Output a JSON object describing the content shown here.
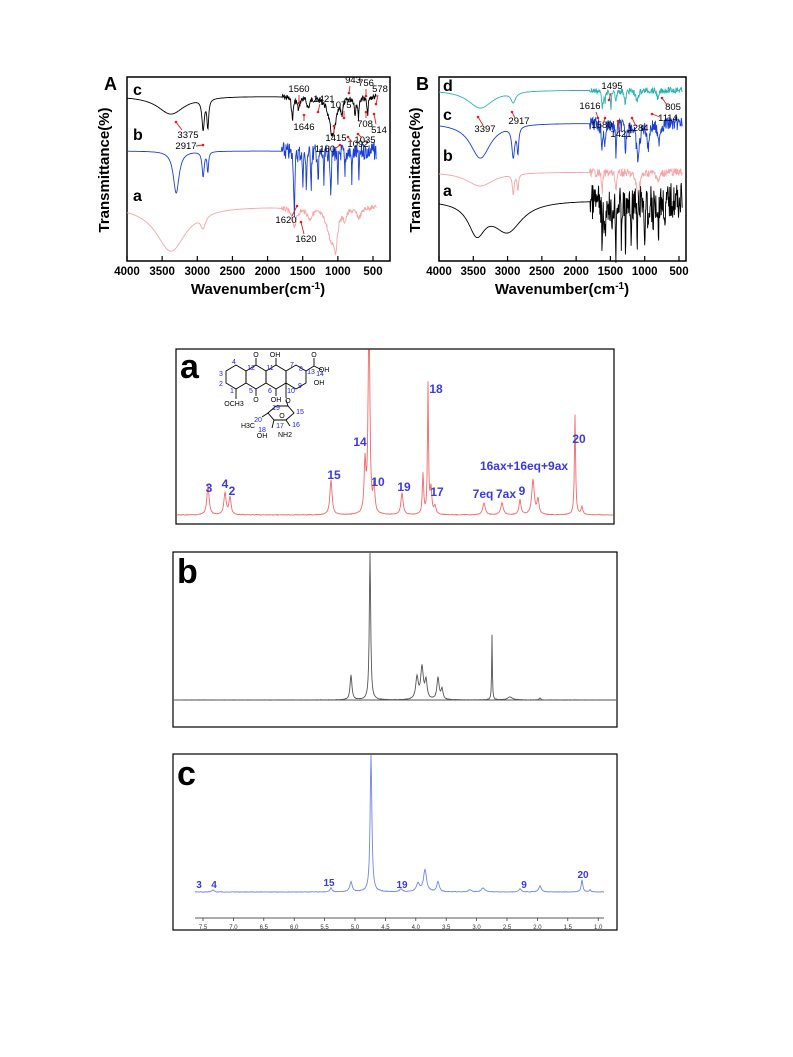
{
  "chart_data": [
    {
      "type": "line",
      "panel_label": "A",
      "xlabel": "Wavenumber(cm-1)",
      "ylabel": "Transmittance(%)",
      "xlim": [
        4000,
        500
      ],
      "x_ticks": [
        "4000",
        "3500",
        "3000",
        "2500",
        "2000",
        "1500",
        "1000",
        "500"
      ],
      "series": [
        {
          "name": "c",
          "color": "#000000",
          "annotations": [
            "3375",
            "2917",
            "1560",
            "1646",
            "1421",
            "1415",
            "1160",
            "1075",
            "1092",
            "1035",
            "943",
            "756",
            "708",
            "578",
            "514"
          ]
        },
        {
          "name": "b",
          "color": "#1a3fd6",
          "annotations": [
            "1620"
          ]
        },
        {
          "name": "a",
          "color": "#f4a6a6",
          "annotations": [
            "1620"
          ]
        }
      ]
    },
    {
      "type": "line",
      "panel_label": "B",
      "xlabel": "Wavenumber(cm-1)",
      "ylabel": "Transmittance(%)",
      "xlim": [
        4000,
        500
      ],
      "x_ticks": [
        "4000",
        "3500",
        "3000",
        "2500",
        "2000",
        "1500",
        "1000",
        "500"
      ],
      "series": [
        {
          "name": "d",
          "color": "#2bb3b3",
          "annotations": [
            "1495",
            "1616",
            "1580",
            "1421",
            "1284",
            "1114",
            "805",
            "3397",
            "2917"
          ]
        },
        {
          "name": "c",
          "color": "#1a3fd6",
          "annotations": []
        },
        {
          "name": "b",
          "color": "#f4a6a6",
          "annotations": []
        },
        {
          "name": "a",
          "color": "#000000",
          "annotations": []
        }
      ]
    },
    {
      "type": "line",
      "panel_label": "a",
      "color": "#f06a6a",
      "peak_labels": [
        "3",
        "4",
        "2",
        "15",
        "14",
        "10",
        "19",
        "18",
        "17",
        "7eq",
        "7ax",
        "9",
        "16ax+16eq+9ax",
        "20"
      ]
    },
    {
      "type": "line",
      "panel_label": "b",
      "color": "#555555",
      "peak_labels": []
    },
    {
      "type": "line",
      "panel_label": "c",
      "color": "#6f86e8",
      "peak_labels": [
        "3",
        "4",
        "15",
        "19",
        "9",
        "20"
      ],
      "x_ticks": [
        "7.5",
        "7.0",
        "6.5",
        "6.0",
        "5.5",
        "5.0",
        "4.5",
        "4.0",
        "3.5",
        "3.0",
        "2.5",
        "2.0",
        "1.5",
        "1.0"
      ]
    }
  ],
  "structure_labels": [
    "O",
    "OH",
    "O",
    "OH",
    "OCH3",
    "O",
    "OH",
    "OH",
    "H3C",
    "NH2",
    "OH",
    "O",
    "O"
  ],
  "structure_numbers": [
    "1",
    "2",
    "3",
    "4",
    "5",
    "6",
    "7",
    "8",
    "9",
    "10",
    "11",
    "12",
    "13",
    "14",
    "15",
    "16",
    "17",
    "18",
    "19",
    "20"
  ]
}
